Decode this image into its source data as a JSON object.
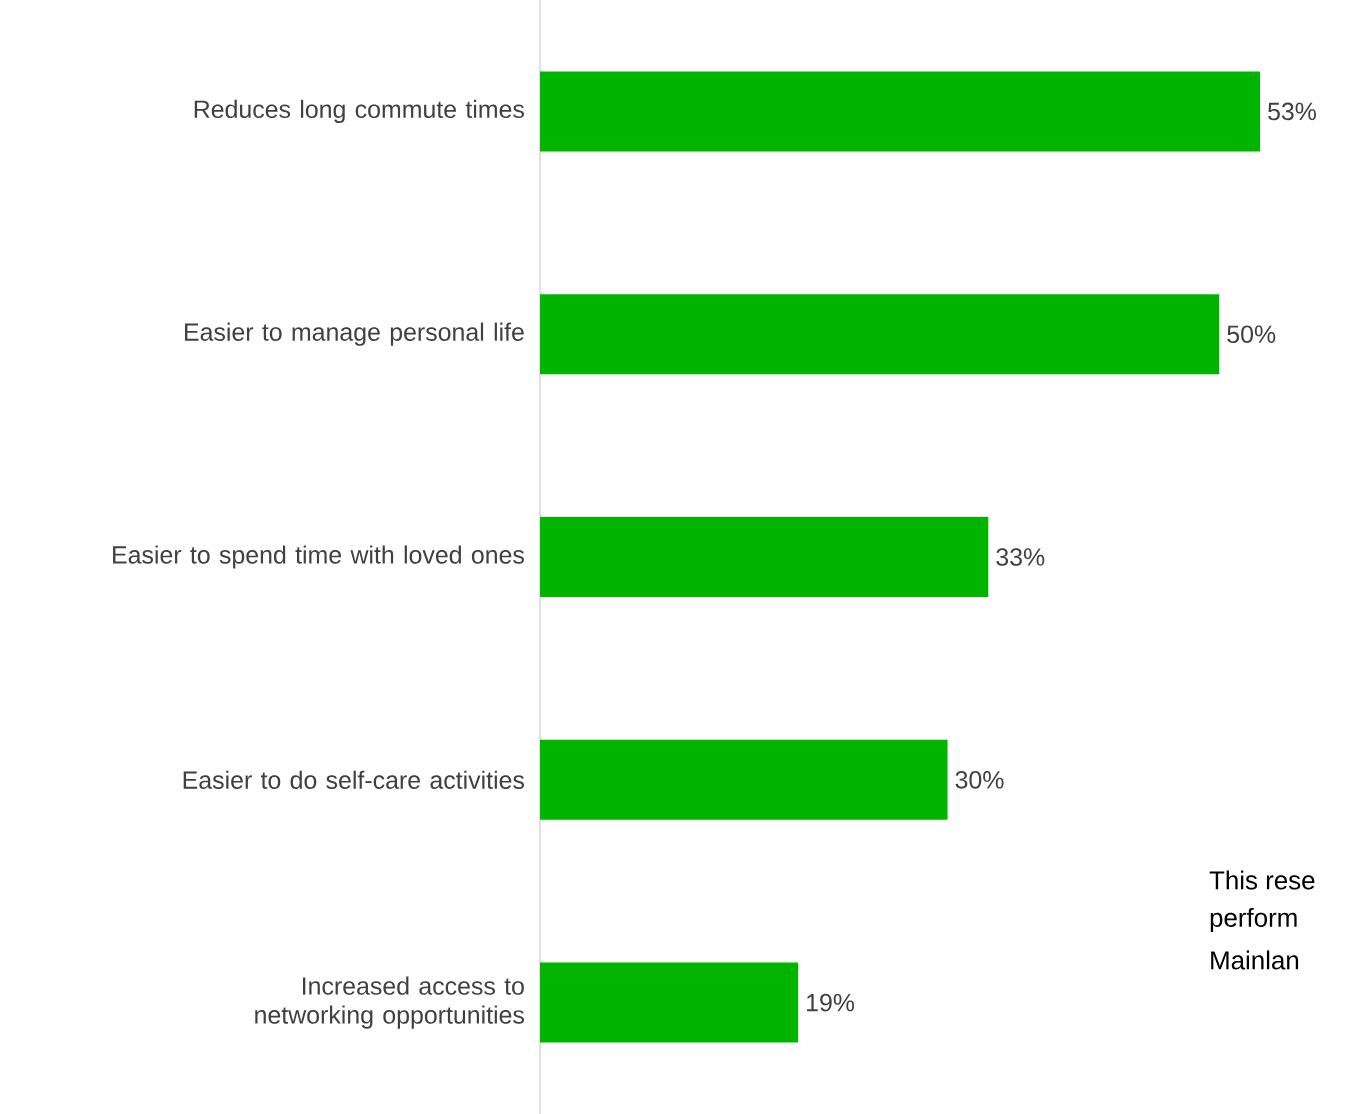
{
  "chart_data": {
    "type": "bar",
    "orientation": "horizontal",
    "categories": [
      "Reduces long commute times",
      "Easier to manage personal life",
      "Easier to spend time with loved ones",
      "Easier to do self-care activities",
      "Increased access to networking opportunities"
    ],
    "values": [
      53,
      50,
      33,
      30,
      19
    ],
    "value_labels": [
      "53%",
      "50%",
      "33%",
      "30%",
      "19%"
    ],
    "color": "#00b400",
    "annotations": [
      "This rese",
      "perform",
      "Mainlan"
    ]
  }
}
